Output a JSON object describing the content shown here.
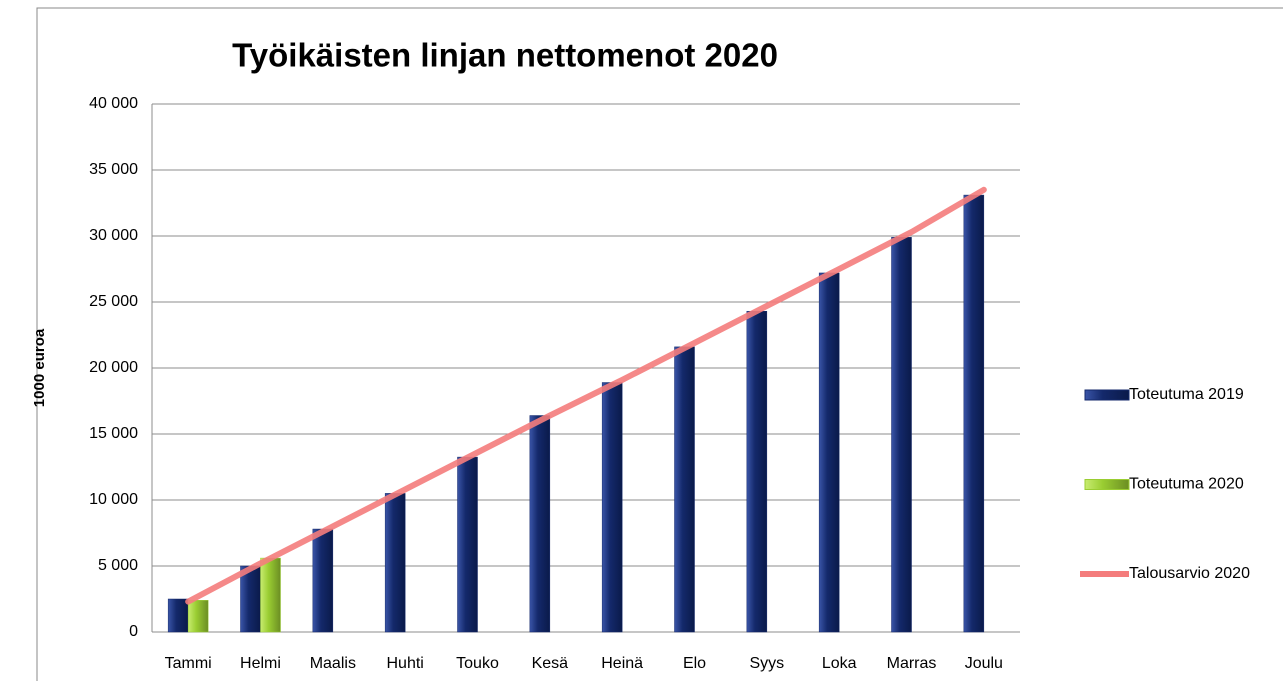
{
  "chart_data": {
    "type": "bar",
    "title": "Työikäisten linjan nettomenot 2020",
    "y_label": "1000 euroa",
    "categories": [
      "Tammi",
      "Helmi",
      "Maalis",
      "Huhti",
      "Touko",
      "Kesä",
      "Heinä",
      "Elo",
      "Syys",
      "Loka",
      "Marras",
      "Joulu"
    ],
    "series": [
      {
        "name": "Toteutuma 2019",
        "type": "bar",
        "color": "#14296b",
        "values": [
          2500,
          5000,
          7800,
          10500,
          13250,
          16400,
          18900,
          21600,
          24300,
          27200,
          29900,
          33100
        ]
      },
      {
        "name": "Toteutuma 2020",
        "type": "bar",
        "color": "#9acd32",
        "values": [
          2400,
          5600,
          null,
          null,
          null,
          null,
          null,
          null,
          null,
          null,
          null,
          null
        ]
      },
      {
        "name": "Talousarvio 2020",
        "type": "line",
        "color": "#f47c7c",
        "values": [
          2300,
          5200,
          8000,
          10800,
          13600,
          16400,
          19100,
          21900,
          24700,
          27500,
          30300,
          33500
        ]
      }
    ],
    "ylim": [
      0,
      40000
    ],
    "yticks": [
      0,
      {
        "value": 5000,
        "label": "5 000"
      },
      {
        "value": 10000,
        "label": "10 000"
      },
      {
        "value": 15000,
        "label": "15 000"
      },
      {
        "value": 20000,
        "label": "20 000"
      },
      {
        "value": 25000,
        "label": "25 000"
      },
      {
        "value": 30000,
        "label": "30 000"
      },
      {
        "value": 35000,
        "label": "35 000"
      },
      {
        "value": 40000,
        "label": "40 000"
      }
    ],
    "grid": true,
    "legend": "right"
  }
}
